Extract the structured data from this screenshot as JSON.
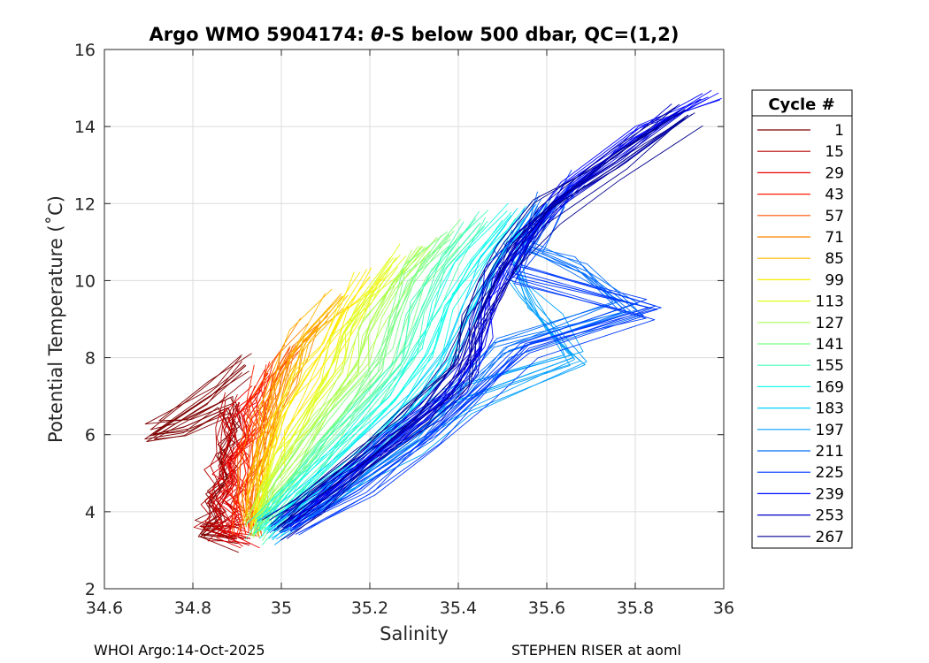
{
  "chart_data": {
    "type": "line",
    "title_prefix": "Argo WMO 5904174: ",
    "title_symbol": "θ",
    "title_suffix": "-S below 500 dbar,  QC=(1,2)",
    "xlabel": "Salinity",
    "ylabel": "Potential Temperature (˚C)",
    "xlim": [
      34.6,
      36.0
    ],
    "ylim": [
      2,
      16
    ],
    "xticks": [
      "34.6",
      "34.8",
      "35",
      "35.2",
      "35.4",
      "35.6",
      "35.8",
      "36"
    ],
    "yticks": [
      "2",
      "4",
      "6",
      "8",
      "10",
      "12",
      "14",
      "16"
    ],
    "grid": true,
    "colormap": "jet",
    "legend": {
      "title": "Cycle #",
      "placement": "right-outside",
      "entries": [
        {
          "label": "1",
          "color": "#7f0000"
        },
        {
          "label": "15",
          "color": "#b50000"
        },
        {
          "label": "29",
          "color": "#e60000"
        },
        {
          "label": "43",
          "color": "#ff1f00"
        },
        {
          "label": "57",
          "color": "#ff5200"
        },
        {
          "label": "71",
          "color": "#ff8500"
        },
        {
          "label": "85",
          "color": "#ffb700"
        },
        {
          "label": "99",
          "color": "#ffea00"
        },
        {
          "label": "113",
          "color": "#e0ff1f"
        },
        {
          "label": "127",
          "color": "#adff52"
        },
        {
          "label": "141",
          "color": "#7aff85"
        },
        {
          "label": "155",
          "color": "#47ffb7"
        },
        {
          "label": "169",
          "color": "#14ffea"
        },
        {
          "label": "183",
          "color": "#00d2ff"
        },
        {
          "label": "197",
          "color": "#009fff"
        },
        {
          "label": "211",
          "color": "#006cff"
        },
        {
          "label": "225",
          "color": "#003aff"
        },
        {
          "label": "239",
          "color": "#0007ff"
        },
        {
          "label": "253",
          "color": "#0000c8"
        },
        {
          "label": "267",
          "color": "#00008f"
        }
      ]
    },
    "series": [
      {
        "name": "1",
        "color": "#7f0000",
        "points": [
          [
            34.92,
            7.8
          ],
          [
            34.84,
            7.0
          ],
          [
            34.71,
            6.0
          ],
          [
            34.78,
            6.2
          ],
          [
            34.88,
            6.7
          ],
          [
            34.9,
            6.1
          ],
          [
            34.86,
            5.4
          ],
          [
            34.88,
            4.8
          ],
          [
            34.84,
            4.3
          ],
          [
            34.86,
            3.8
          ],
          [
            34.82,
            3.4
          ],
          [
            34.9,
            3.3
          ]
        ]
      },
      {
        "name": "15",
        "color": "#b50000",
        "points": [
          [
            34.9,
            6.8
          ],
          [
            34.87,
            6.1
          ],
          [
            34.89,
            5.5
          ],
          [
            34.86,
            5.0
          ],
          [
            34.88,
            4.6
          ],
          [
            34.85,
            4.1
          ],
          [
            34.88,
            3.8
          ],
          [
            34.84,
            3.5
          ],
          [
            34.9,
            3.3
          ]
        ]
      },
      {
        "name": "29",
        "color": "#e60000",
        "points": [
          [
            34.95,
            7.2
          ],
          [
            34.9,
            6.5
          ],
          [
            34.92,
            5.9
          ],
          [
            34.88,
            5.3
          ],
          [
            34.9,
            4.8
          ],
          [
            34.87,
            4.3
          ],
          [
            34.9,
            3.9
          ],
          [
            34.88,
            3.5
          ],
          [
            34.93,
            3.3
          ]
        ]
      },
      {
        "name": "43",
        "color": "#ff1f00",
        "points": [
          [
            34.97,
            7.6
          ],
          [
            34.93,
            6.9
          ],
          [
            34.95,
            6.2
          ],
          [
            34.91,
            5.6
          ],
          [
            34.92,
            5.0
          ],
          [
            34.9,
            4.4
          ],
          [
            34.91,
            3.9
          ],
          [
            34.92,
            3.4
          ]
        ]
      },
      {
        "name": "57",
        "color": "#ff5200",
        "points": [
          [
            35.02,
            8.3
          ],
          [
            34.98,
            7.5
          ],
          [
            34.97,
            6.8
          ],
          [
            34.95,
            6.1
          ],
          [
            34.94,
            5.4
          ],
          [
            34.93,
            4.7
          ],
          [
            34.92,
            4.1
          ],
          [
            34.93,
            3.5
          ]
        ]
      },
      {
        "name": "71",
        "color": "#ff8500",
        "points": [
          [
            35.08,
            8.8
          ],
          [
            35.02,
            8.0
          ],
          [
            35.0,
            7.2
          ],
          [
            34.97,
            6.4
          ],
          [
            34.95,
            5.6
          ],
          [
            34.94,
            4.9
          ],
          [
            34.93,
            4.2
          ],
          [
            34.93,
            3.6
          ]
        ]
      },
      {
        "name": "85",
        "color": "#ffb700",
        "points": [
          [
            35.14,
            9.6
          ],
          [
            35.06,
            8.5
          ],
          [
            35.02,
            7.5
          ],
          [
            34.99,
            6.6
          ],
          [
            34.97,
            5.7
          ],
          [
            34.95,
            4.9
          ],
          [
            34.94,
            4.2
          ],
          [
            34.94,
            3.6
          ]
        ]
      },
      {
        "name": "99",
        "color": "#ffea00",
        "points": [
          [
            35.2,
            10.1
          ],
          [
            35.14,
            9.2
          ],
          [
            35.1,
            8.3
          ],
          [
            35.05,
            7.4
          ],
          [
            35.0,
            6.4
          ],
          [
            34.97,
            5.4
          ],
          [
            34.95,
            4.5
          ],
          [
            34.94,
            3.7
          ]
        ]
      },
      {
        "name": "113",
        "color": "#e0ff1f",
        "points": [
          [
            35.26,
            10.6
          ],
          [
            35.2,
            9.6
          ],
          [
            35.14,
            8.6
          ],
          [
            35.12,
            7.6
          ],
          [
            35.06,
            6.6
          ],
          [
            35.0,
            5.5
          ],
          [
            34.96,
            4.5
          ],
          [
            34.94,
            3.7
          ]
        ]
      },
      {
        "name": "127",
        "color": "#adff52",
        "points": [
          [
            35.32,
            10.9
          ],
          [
            35.25,
            9.9
          ],
          [
            35.2,
            8.9
          ],
          [
            35.17,
            7.8
          ],
          [
            35.1,
            6.7
          ],
          [
            35.03,
            5.5
          ],
          [
            34.97,
            4.5
          ],
          [
            34.94,
            3.6
          ]
        ]
      },
      {
        "name": "141",
        "color": "#7aff85",
        "points": [
          [
            35.38,
            11.2
          ],
          [
            35.3,
            10.1
          ],
          [
            35.26,
            9.0
          ],
          [
            35.22,
            7.9
          ],
          [
            35.15,
            6.7
          ],
          [
            35.06,
            5.5
          ],
          [
            34.99,
            4.4
          ],
          [
            34.95,
            3.6
          ]
        ]
      },
      {
        "name": "155",
        "color": "#47ffb7",
        "points": [
          [
            35.45,
            11.5
          ],
          [
            35.37,
            10.4
          ],
          [
            35.32,
            9.2
          ],
          [
            35.28,
            8.0
          ],
          [
            35.2,
            6.8
          ],
          [
            35.1,
            5.6
          ],
          [
            35.01,
            4.4
          ],
          [
            34.95,
            3.5
          ]
        ]
      },
      {
        "name": "169",
        "color": "#14ffea",
        "points": [
          [
            35.52,
            11.7
          ],
          [
            35.43,
            10.5
          ],
          [
            35.38,
            9.4
          ],
          [
            35.33,
            8.1
          ],
          [
            35.25,
            6.8
          ],
          [
            35.15,
            5.6
          ],
          [
            35.04,
            4.4
          ],
          [
            34.96,
            3.5
          ]
        ]
      },
      {
        "name": "183",
        "color": "#00d2ff",
        "points": [
          [
            35.55,
            11.6
          ],
          [
            35.48,
            10.4
          ],
          [
            35.43,
            9.2
          ],
          [
            35.38,
            8.0
          ],
          [
            35.3,
            6.8
          ],
          [
            35.2,
            5.6
          ],
          [
            35.07,
            4.4
          ],
          [
            34.97,
            3.5
          ]
        ]
      },
      {
        "name": "197",
        "color": "#009fff",
        "points": [
          [
            35.58,
            11.8
          ],
          [
            35.52,
            10.6
          ],
          [
            35.55,
            9.6
          ],
          [
            35.6,
            8.8
          ],
          [
            35.66,
            8.0
          ],
          [
            35.4,
            6.9
          ],
          [
            35.28,
            5.8
          ],
          [
            35.12,
            4.5
          ],
          [
            34.98,
            3.5
          ]
        ]
      },
      {
        "name": "211",
        "color": "#006cff",
        "points": [
          [
            35.6,
            12.0
          ],
          [
            35.55,
            10.8
          ],
          [
            35.68,
            10.2
          ],
          [
            35.78,
            9.2
          ],
          [
            35.5,
            8.1
          ],
          [
            35.42,
            7.0
          ],
          [
            35.3,
            5.9
          ],
          [
            35.15,
            4.6
          ],
          [
            35.0,
            3.5
          ]
        ]
      },
      {
        "name": "225",
        "color": "#003aff",
        "points": [
          [
            35.66,
            12.6
          ],
          [
            35.58,
            11.4
          ],
          [
            35.52,
            10.2
          ],
          [
            35.83,
            9.3
          ],
          [
            35.55,
            8.3
          ],
          [
            35.45,
            7.2
          ],
          [
            35.33,
            5.9
          ],
          [
            35.18,
            4.6
          ],
          [
            35.02,
            3.5
          ]
        ]
      },
      {
        "name": "239",
        "color": "#0007ff",
        "points": [
          [
            35.96,
            14.7
          ],
          [
            35.8,
            13.7
          ],
          [
            35.65,
            12.4
          ],
          [
            35.56,
            11.2
          ],
          [
            35.5,
            10.2
          ],
          [
            35.46,
            9.2
          ],
          [
            35.45,
            8.2
          ],
          [
            35.38,
            7.0
          ],
          [
            35.25,
            5.8
          ],
          [
            35.12,
            4.6
          ],
          [
            35.02,
            3.6
          ]
        ]
      },
      {
        "name": "253",
        "color": "#0000c8",
        "points": [
          [
            35.9,
            14.4
          ],
          [
            35.75,
            13.2
          ],
          [
            35.62,
            12.0
          ],
          [
            35.53,
            10.9
          ],
          [
            35.48,
            9.9
          ],
          [
            35.44,
            8.8
          ],
          [
            35.42,
            7.8
          ],
          [
            35.33,
            6.6
          ],
          [
            35.2,
            5.4
          ],
          [
            35.08,
            4.3
          ],
          [
            35.0,
            3.6
          ]
        ]
      },
      {
        "name": "267",
        "color": "#00008f",
        "points": [
          [
            35.92,
            14.3
          ],
          [
            35.76,
            13.0
          ],
          [
            35.6,
            11.8
          ],
          [
            35.52,
            10.6
          ],
          [
            35.47,
            9.7
          ],
          [
            35.43,
            8.7
          ],
          [
            35.4,
            7.6
          ],
          [
            35.3,
            6.4
          ],
          [
            35.18,
            5.2
          ],
          [
            35.06,
            4.2
          ],
          [
            34.99,
            3.6
          ]
        ]
      }
    ]
  },
  "footer": {
    "left": "WHOI Argo:14-Oct-2025",
    "right": "STEPHEN RISER at aoml"
  }
}
